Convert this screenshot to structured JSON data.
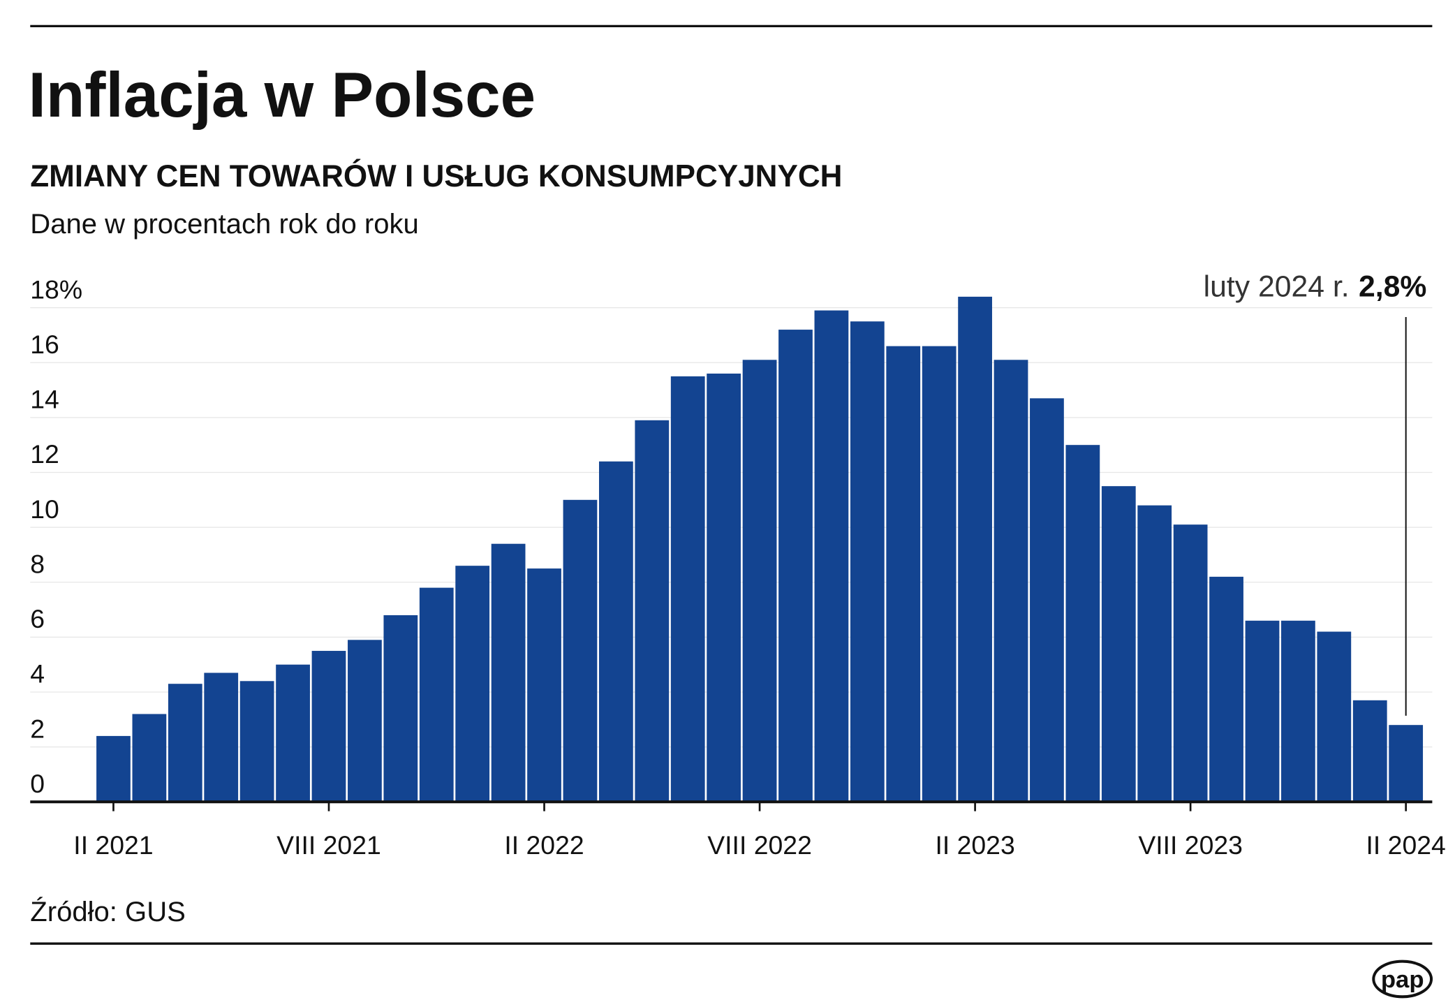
{
  "chart_data": {
    "type": "bar",
    "title": "Inflacja w Polsce",
    "subtitle": "ZMIANY CEN TOWARÓW I USŁUG KONSUMPCYJNYCH",
    "y_label": "Dane w procentach rok do roku",
    "source": "Źródło: GUS",
    "logo": "pap",
    "annotation": {
      "text": "luty 2024 r.",
      "value": "2,8%"
    },
    "categories": [
      "II 2021",
      null,
      null,
      null,
      null,
      null,
      "VIII 2021",
      null,
      null,
      null,
      null,
      null,
      "II 2022",
      null,
      null,
      null,
      null,
      null,
      "VIII 2022",
      null,
      null,
      null,
      null,
      null,
      "II 2023",
      null,
      null,
      null,
      null,
      null,
      "VIII 2023",
      null,
      null,
      null,
      null,
      null,
      "II 2024"
    ],
    "values": [
      2.4,
      3.2,
      4.3,
      4.7,
      4.4,
      5.0,
      5.5,
      5.9,
      6.8,
      7.8,
      8.6,
      9.4,
      8.5,
      11.0,
      12.4,
      13.9,
      15.5,
      15.6,
      16.1,
      17.2,
      17.9,
      17.5,
      16.6,
      16.6,
      18.4,
      16.1,
      14.7,
      13.0,
      11.5,
      10.8,
      10.1,
      8.2,
      6.6,
      6.6,
      6.2,
      3.7,
      2.8
    ],
    "color": "#134491",
    "ylim": [
      0,
      18
    ],
    "yticks": [
      0,
      2,
      4,
      6,
      8,
      10,
      12,
      14,
      16,
      {
        "value": 18,
        "label": "18%"
      }
    ],
    "grid": true
  }
}
